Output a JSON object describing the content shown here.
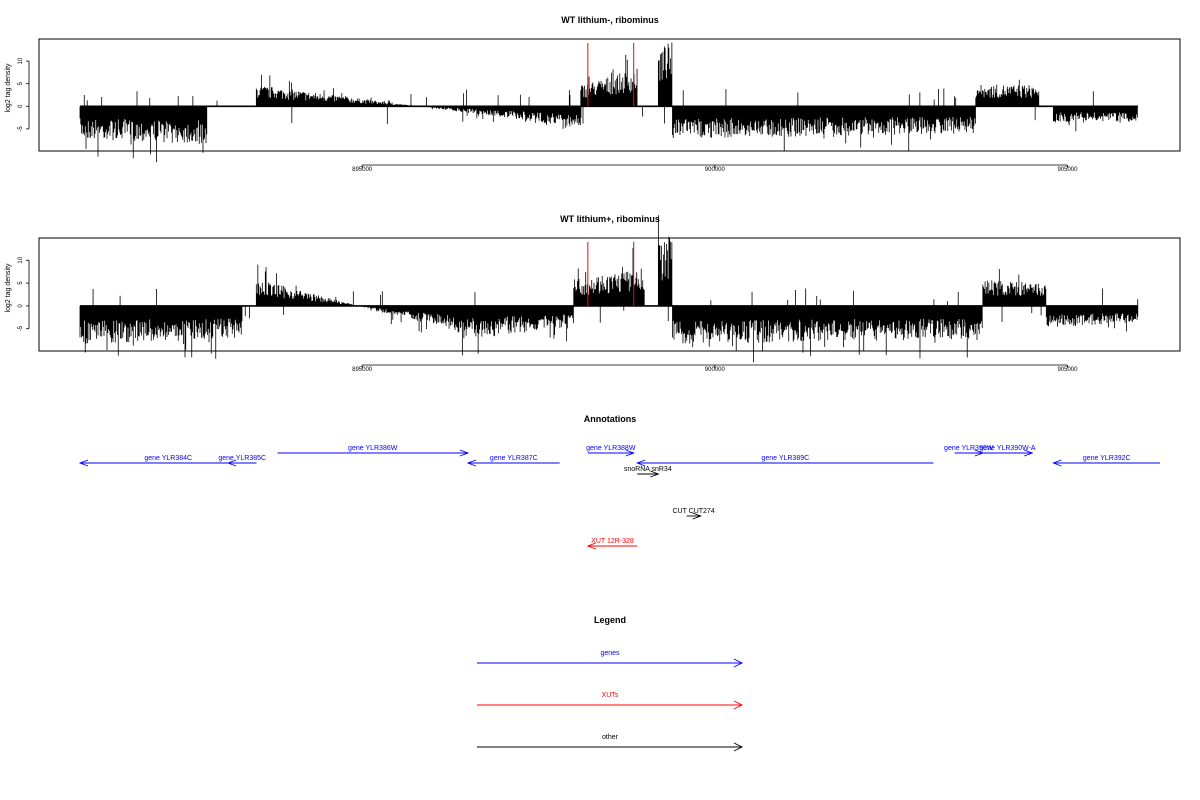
{
  "colors": {
    "axis": "#000000",
    "bars": "#000000",
    "genes": "#0000ff",
    "xuts": "#ff0000",
    "other": "#000000",
    "marker": "#ff0000"
  },
  "chart_data": [
    {
      "type": "bar",
      "title": "WT lithium-, ribominus",
      "ylabel": "log2 tag density",
      "ylim": [
        -9,
        14
      ],
      "xlim": [
        891000,
        906800
      ],
      "x_ticks": [
        895000,
        900000,
        905000
      ],
      "y_ticks": [
        10,
        5,
        0,
        -5
      ],
      "vlines": [
        898200,
        898850
      ],
      "series": [
        {
          "x": [
            891000,
            892800
          ],
          "values": [
            -6,
            -7
          ]
        },
        {
          "x": [
            893500,
            898100
          ],
          "values": [
            4,
            -4
          ]
        },
        {
          "x": [
            898100,
            898900
          ],
          "values": [
            4,
            7
          ]
        },
        {
          "x": [
            899200,
            899400
          ],
          "values": [
            11,
            12
          ]
        },
        {
          "x": [
            899400,
            903700
          ],
          "values": [
            -6,
            -5
          ]
        },
        {
          "x": [
            903700,
            904600
          ],
          "values": [
            4,
            4
          ]
        },
        {
          "x": [
            904800,
            906000
          ],
          "values": [
            -3,
            -3
          ]
        }
      ]
    },
    {
      "type": "bar",
      "title": "WT lithium+, ribominus",
      "ylabel": "log2 tag density",
      "ylim": [
        -9,
        14
      ],
      "xlim": [
        891000,
        906800
      ],
      "x_ticks": [
        895000,
        900000,
        905000
      ],
      "y_ticks": [
        10,
        5,
        0,
        -5
      ],
      "vlines": [
        898200,
        898850
      ],
      "series": [
        {
          "x": [
            891000,
            893300
          ],
          "values": [
            -7,
            -6
          ]
        },
        {
          "x": [
            893500,
            896400
          ],
          "values": [
            5,
            -5
          ]
        },
        {
          "x": [
            896400,
            898000
          ],
          "values": [
            -6,
            -4
          ]
        },
        {
          "x": [
            898000,
            899000
          ],
          "values": [
            5,
            7
          ]
        },
        {
          "x": [
            899200,
            899400
          ],
          "values": [
            12,
            13
          ]
        },
        {
          "x": [
            899400,
            903800
          ],
          "values": [
            -7,
            -6
          ]
        },
        {
          "x": [
            903800,
            904700
          ],
          "values": [
            5,
            4
          ]
        },
        {
          "x": [
            904700,
            906000
          ],
          "values": [
            -4,
            -3
          ]
        }
      ]
    }
  ],
  "annotations": {
    "title": "Annotations",
    "features": [
      {
        "label": "gene YLR384C",
        "start": 891000,
        "end": 893500,
        "strand": "-",
        "kind": "genes",
        "row": 1
      },
      {
        "label": "gene YLR385C",
        "start": 893100,
        "end": 893500,
        "strand": "-",
        "kind": "genes",
        "row": 1
      },
      {
        "label": "gene YLR386W",
        "start": 893800,
        "end": 896500,
        "strand": "+",
        "kind": "genes",
        "row": 0
      },
      {
        "label": "gene YLR387C",
        "start": 896500,
        "end": 897800,
        "strand": "-",
        "kind": "genes",
        "row": 1
      },
      {
        "label": "gene YLR388W",
        "start": 898200,
        "end": 898850,
        "strand": "+",
        "kind": "genes",
        "row": 0
      },
      {
        "label": "snoRNA snR34",
        "start": 898900,
        "end": 899200,
        "strand": "+",
        "kind": "other",
        "row": 2
      },
      {
        "label": "gene YLR389C",
        "start": 898900,
        "end": 903100,
        "strand": "-",
        "kind": "genes",
        "row": 1
      },
      {
        "label": "gene YLR390W",
        "start": 903400,
        "end": 903800,
        "strand": "+",
        "kind": "genes",
        "row": 0
      },
      {
        "label": "gene YLR390W-A",
        "start": 903800,
        "end": 904500,
        "strand": "+",
        "kind": "genes",
        "row": 0
      },
      {
        "label": "gene YLR392C",
        "start": 904800,
        "end": 906600,
        "strand": "-",
        "kind": "genes",
        "row": 1
      },
      {
        "label": "CUT CUT274",
        "start": 899600,
        "end": 899800,
        "strand": "+",
        "kind": "other",
        "row": 3
      },
      {
        "label": "XUT 12R-328",
        "start": 898200,
        "end": 898900,
        "strand": "-",
        "kind": "xuts",
        "row": 4
      }
    ]
  },
  "legend": {
    "title": "Legend",
    "items": [
      {
        "label": "genes",
        "kind": "genes"
      },
      {
        "label": "XUTs",
        "kind": "xuts"
      },
      {
        "label": "other",
        "kind": "other"
      }
    ]
  }
}
